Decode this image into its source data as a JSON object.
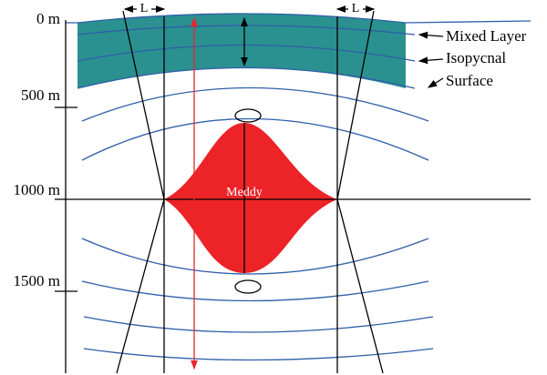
{
  "depth_labels": [
    "0 m",
    "500 m",
    "1000 m",
    "1500 m"
  ],
  "width_labels": [
    "L",
    "L"
  ],
  "legend": {
    "mixed_layer": "Mixed Layer",
    "isopycnal": "Isopycnal",
    "surface": "Surface"
  },
  "eddy_label": "Meddy"
}
